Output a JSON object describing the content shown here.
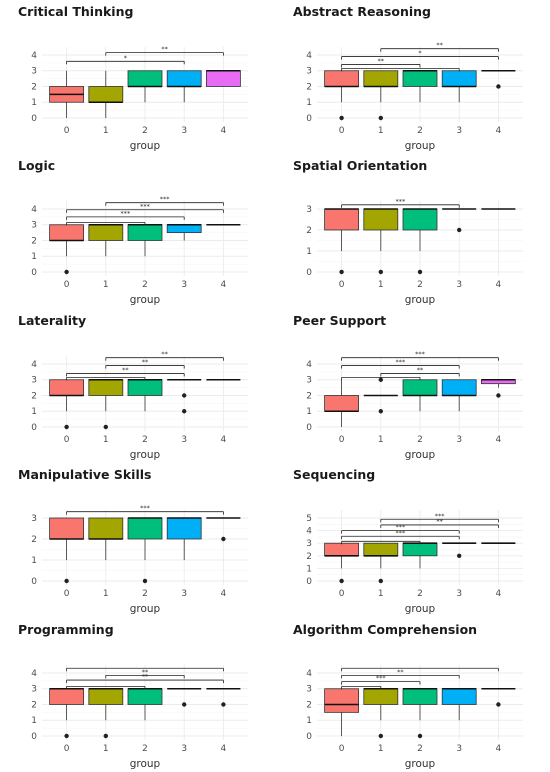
{
  "chart_data": [
    {
      "type": "box",
      "title": "Critical Thinking",
      "xlabel": "group",
      "categories": [
        "0",
        "1",
        "2",
        "3",
        "4"
      ],
      "ylim": [
        0,
        4.5
      ],
      "yticks": [
        0,
        1,
        2,
        3,
        4
      ],
      "boxes": [
        {
          "q1": 1,
          "median": 1.5,
          "q3": 2,
          "lower": 0,
          "upper": 3,
          "outliers": []
        },
        {
          "q1": 1,
          "median": 1,
          "q3": 2,
          "lower": 0,
          "upper": 3,
          "outliers": []
        },
        {
          "q1": 2,
          "median": 2,
          "q3": 3,
          "lower": 1,
          "upper": 3,
          "outliers": []
        },
        {
          "q1": 2,
          "median": 2,
          "q3": 3,
          "lower": 1,
          "upper": 3,
          "outliers": []
        },
        {
          "q1": 2,
          "median": 3,
          "q3": 3,
          "lower": 2,
          "upper": 3,
          "outliers": []
        }
      ],
      "significance": [
        {
          "from": "1",
          "to": "4",
          "label": "**",
          "y": 4.15
        },
        {
          "from": "0",
          "to": "3",
          "label": "*",
          "y": 3.6
        }
      ]
    },
    {
      "type": "box",
      "title": "Abstract Reasoning",
      "xlabel": "group",
      "categories": [
        "0",
        "1",
        "2",
        "3",
        "4"
      ],
      "ylim": [
        0,
        4.5
      ],
      "yticks": [
        0,
        1,
        2,
        3,
        4
      ],
      "boxes": [
        {
          "q1": 2,
          "median": 2,
          "q3": 3,
          "lower": 1,
          "upper": 3,
          "outliers": [
            0
          ]
        },
        {
          "q1": 2,
          "median": 2,
          "q3": 3,
          "lower": 1,
          "upper": 3,
          "outliers": [
            0
          ]
        },
        {
          "q1": 2,
          "median": 3,
          "q3": 3,
          "lower": 1,
          "upper": 3,
          "outliers": []
        },
        {
          "q1": 2,
          "median": 2,
          "q3": 3,
          "lower": 1,
          "upper": 3,
          "outliers": []
        },
        {
          "q1": 3,
          "median": 3,
          "q3": 3,
          "lower": 3,
          "upper": 3,
          "outliers": [
            2
          ]
        }
      ],
      "significance": [
        {
          "from": "1",
          "to": "4",
          "label": "**",
          "y": 4.4
        },
        {
          "from": "0",
          "to": "4",
          "label": "*",
          "y": 3.9
        },
        {
          "from": "0",
          "to": "2",
          "label": "**",
          "y": 3.4
        },
        {
          "from": "0",
          "to": "3",
          "label": "",
          "y": 3.15
        }
      ]
    },
    {
      "type": "box",
      "title": "Logic",
      "xlabel": "group",
      "categories": [
        "0",
        "1",
        "2",
        "3",
        "4"
      ],
      "ylim": [
        0,
        4.5
      ],
      "yticks": [
        0,
        1,
        2,
        3,
        4
      ],
      "boxes": [
        {
          "q1": 2,
          "median": 2,
          "q3": 3,
          "lower": 1,
          "upper": 3,
          "outliers": [
            0
          ]
        },
        {
          "q1": 2,
          "median": 3,
          "q3": 3,
          "lower": 1,
          "upper": 3,
          "outliers": []
        },
        {
          "q1": 2,
          "median": 3,
          "q3": 3,
          "lower": 1,
          "upper": 3,
          "outliers": []
        },
        {
          "q1": 2.5,
          "median": 3,
          "q3": 3,
          "lower": 2,
          "upper": 3,
          "outliers": []
        },
        {
          "q1": 3,
          "median": 3,
          "q3": 3,
          "lower": 3,
          "upper": 3,
          "outliers": []
        }
      ],
      "significance": [
        {
          "from": "1",
          "to": "4",
          "label": "***",
          "y": 4.4
        },
        {
          "from": "0",
          "to": "4",
          "label": "***",
          "y": 3.95
        },
        {
          "from": "0",
          "to": "3",
          "label": "***",
          "y": 3.5
        },
        {
          "from": "0",
          "to": "2",
          "label": "",
          "y": 3.15
        }
      ]
    },
    {
      "type": "box",
      "title": "Spatial Orientation",
      "xlabel": "group",
      "categories": [
        "0",
        "1",
        "2",
        "3",
        "4"
      ],
      "ylim": [
        0,
        3.5
      ],
      "yticks": [
        0,
        1,
        2,
        3
      ],
      "boxes": [
        {
          "q1": 2,
          "median": 3,
          "q3": 3,
          "lower": 1,
          "upper": 3,
          "outliers": [
            0
          ]
        },
        {
          "q1": 2,
          "median": 3,
          "q3": 3,
          "lower": 1,
          "upper": 3,
          "outliers": [
            0
          ]
        },
        {
          "q1": 2,
          "median": 3,
          "q3": 3,
          "lower": 1,
          "upper": 3,
          "outliers": [
            0
          ]
        },
        {
          "q1": 3,
          "median": 3,
          "q3": 3,
          "lower": 3,
          "upper": 3,
          "outliers": [
            2
          ]
        },
        {
          "q1": 3,
          "median": 3,
          "q3": 3,
          "lower": 3,
          "upper": 3,
          "outliers": []
        }
      ],
      "significance": [
        {
          "from": "0",
          "to": "3",
          "label": "***",
          "y": 3.2
        }
      ]
    },
    {
      "type": "box",
      "title": "Laterality",
      "xlabel": "group",
      "categories": [
        "0",
        "1",
        "2",
        "3",
        "4"
      ],
      "ylim": [
        0,
        4.5
      ],
      "yticks": [
        0,
        1,
        2,
        3,
        4
      ],
      "boxes": [
        {
          "q1": 2,
          "median": 2,
          "q3": 3,
          "lower": 1,
          "upper": 3,
          "outliers": [
            0
          ]
        },
        {
          "q1": 2,
          "median": 3,
          "q3": 3,
          "lower": 1,
          "upper": 3,
          "outliers": [
            0
          ]
        },
        {
          "q1": 2,
          "median": 3,
          "q3": 3,
          "lower": 1,
          "upper": 3,
          "outliers": []
        },
        {
          "q1": 3,
          "median": 3,
          "q3": 3,
          "lower": 3,
          "upper": 3,
          "outliers": [
            1,
            2
          ]
        },
        {
          "q1": 3,
          "median": 3,
          "q3": 3,
          "lower": 3,
          "upper": 3,
          "outliers": []
        }
      ],
      "significance": [
        {
          "from": "1",
          "to": "4",
          "label": "**",
          "y": 4.4
        },
        {
          "from": "1",
          "to": "3",
          "label": "**",
          "y": 3.9
        },
        {
          "from": "0",
          "to": "3",
          "label": "**",
          "y": 3.4
        },
        {
          "from": "0",
          "to": "2",
          "label": "",
          "y": 3.15
        }
      ]
    },
    {
      "type": "box",
      "title": "Peer Support",
      "xlabel": "group",
      "categories": [
        "0",
        "1",
        "2",
        "3",
        "4"
      ],
      "ylim": [
        0,
        4.5
      ],
      "yticks": [
        0,
        1,
        2,
        3,
        4
      ],
      "boxes": [
        {
          "q1": 1,
          "median": 1,
          "q3": 2,
          "lower": 0,
          "upper": 3,
          "outliers": []
        },
        {
          "q1": 2,
          "median": 2,
          "q3": 2,
          "lower": 2,
          "upper": 2,
          "outliers": [
            1,
            3
          ]
        },
        {
          "q1": 2,
          "median": 2,
          "q3": 3,
          "lower": 1,
          "upper": 3,
          "outliers": []
        },
        {
          "q1": 2,
          "median": 2,
          "q3": 3,
          "lower": 1,
          "upper": 3,
          "outliers": []
        },
        {
          "q1": 2.75,
          "median": 3,
          "q3": 3,
          "lower": 2.5,
          "upper": 3,
          "outliers": [
            2
          ]
        }
      ],
      "significance": [
        {
          "from": "0",
          "to": "4",
          "label": "***",
          "y": 4.4
        },
        {
          "from": "0",
          "to": "3",
          "label": "***",
          "y": 3.9
        },
        {
          "from": "1",
          "to": "3",
          "label": "**",
          "y": 3.4
        },
        {
          "from": "0",
          "to": "2",
          "label": "",
          "y": 3.15
        }
      ]
    },
    {
      "type": "box",
      "title": "Manipulative Skills",
      "xlabel": "group",
      "categories": [
        "0",
        "1",
        "2",
        "3",
        "4"
      ],
      "ylim": [
        0,
        3.5
      ],
      "yticks": [
        0,
        1,
        2,
        3
      ],
      "boxes": [
        {
          "q1": 2,
          "median": 2,
          "q3": 3,
          "lower": 1,
          "upper": 3,
          "outliers": [
            0
          ]
        },
        {
          "q1": 2,
          "median": 2,
          "q3": 3,
          "lower": 1,
          "upper": 3,
          "outliers": []
        },
        {
          "q1": 2,
          "median": 3,
          "q3": 3,
          "lower": 1,
          "upper": 3,
          "outliers": [
            0
          ]
        },
        {
          "q1": 2,
          "median": 3,
          "q3": 3,
          "lower": 1,
          "upper": 3,
          "outliers": []
        },
        {
          "q1": 3,
          "median": 3,
          "q3": 3,
          "lower": 3,
          "upper": 3,
          "outliers": [
            2
          ]
        }
      ],
      "significance": [
        {
          "from": "0",
          "to": "4",
          "label": "***",
          "y": 3.3
        }
      ]
    },
    {
      "type": "box",
      "title": "Sequencing",
      "xlabel": "group",
      "categories": [
        "0",
        "1",
        "2",
        "3",
        "4"
      ],
      "ylim": [
        0,
        5.2
      ],
      "yticks": [
        0,
        1,
        2,
        3,
        4,
        5
      ],
      "boxes": [
        {
          "q1": 2,
          "median": 2,
          "q3": 3,
          "lower": 1,
          "upper": 3,
          "outliers": [
            0
          ]
        },
        {
          "q1": 2,
          "median": 2,
          "q3": 3,
          "lower": 1,
          "upper": 3,
          "outliers": [
            0
          ]
        },
        {
          "q1": 2,
          "median": 3,
          "q3": 3,
          "lower": 1,
          "upper": 3,
          "outliers": []
        },
        {
          "q1": 3,
          "median": 3,
          "q3": 3,
          "lower": 3,
          "upper": 3,
          "outliers": [
            2
          ]
        },
        {
          "q1": 3,
          "median": 3,
          "q3": 3,
          "lower": 3,
          "upper": 3,
          "outliers": []
        }
      ],
      "significance": [
        {
          "from": "1",
          "to": "4",
          "label": "***",
          "y": 4.9
        },
        {
          "from": "1",
          "to": "4",
          "label": "**",
          "y": 4.45
        },
        {
          "from": "0",
          "to": "3",
          "label": "***",
          "y": 4.0
        },
        {
          "from": "0",
          "to": "3",
          "label": "***",
          "y": 3.55
        },
        {
          "from": "0",
          "to": "2",
          "label": "",
          "y": 3.15
        }
      ]
    },
    {
      "type": "box",
      "title": "Programming",
      "xlabel": "group",
      "categories": [
        "0",
        "1",
        "2",
        "3",
        "4"
      ],
      "ylim": [
        0,
        4.5
      ],
      "yticks": [
        0,
        1,
        2,
        3,
        4
      ],
      "boxes": [
        {
          "q1": 2,
          "median": 3,
          "q3": 3,
          "lower": 1,
          "upper": 3,
          "outliers": [
            0
          ]
        },
        {
          "q1": 2,
          "median": 3,
          "q3": 3,
          "lower": 1,
          "upper": 3,
          "outliers": [
            0
          ]
        },
        {
          "q1": 2,
          "median": 3,
          "q3": 3,
          "lower": 1,
          "upper": 3,
          "outliers": []
        },
        {
          "q1": 3,
          "median": 3,
          "q3": 3,
          "lower": 3,
          "upper": 3,
          "outliers": [
            2
          ]
        },
        {
          "q1": 3,
          "median": 3,
          "q3": 3,
          "lower": 3,
          "upper": 3,
          "outliers": [
            2
          ]
        }
      ],
      "significance": [
        {
          "from": "0",
          "to": "4",
          "label": "",
          "y": 4.3
        },
        {
          "from": "1",
          "to": "3",
          "label": "**",
          "y": 3.85
        },
        {
          "from": "0",
          "to": "4",
          "label": "**",
          "y": 3.55
        },
        {
          "from": "0",
          "to": "2",
          "label": "",
          "y": 3.15
        }
      ]
    },
    {
      "type": "box",
      "title": "Algorithm Comprehension",
      "xlabel": "group",
      "categories": [
        "0",
        "1",
        "2",
        "3",
        "4"
      ],
      "ylim": [
        0,
        4.5
      ],
      "yticks": [
        0,
        1,
        2,
        3,
        4
      ],
      "boxes": [
        {
          "q1": 1.5,
          "median": 2,
          "q3": 3,
          "lower": 0,
          "upper": 3,
          "outliers": []
        },
        {
          "q1": 2,
          "median": 3,
          "q3": 3,
          "lower": 1,
          "upper": 3,
          "outliers": [
            0
          ]
        },
        {
          "q1": 2,
          "median": 3,
          "q3": 3,
          "lower": 1,
          "upper": 3,
          "outliers": [
            0
          ]
        },
        {
          "q1": 2,
          "median": 3,
          "q3": 3,
          "lower": 1,
          "upper": 3,
          "outliers": []
        },
        {
          "q1": 3,
          "median": 3,
          "q3": 3,
          "lower": 3,
          "upper": 3,
          "outliers": [
            2
          ]
        }
      ],
      "significance": [
        {
          "from": "0",
          "to": "4",
          "label": "",
          "y": 4.3
        },
        {
          "from": "0",
          "to": "3",
          "label": "**",
          "y": 3.85
        },
        {
          "from": "0",
          "to": "2",
          "label": "***",
          "y": 3.45
        },
        {
          "from": "0",
          "to": "1",
          "label": "",
          "y": 3.15
        }
      ]
    }
  ],
  "colors": {
    "group_fill": [
      "#f8766d",
      "#a3a500",
      "#00bf7d",
      "#00b0f6",
      "#e76bf3"
    ],
    "grid": "#ebebeb",
    "line": "#333333",
    "bracket": "#222222",
    "point": "#222222"
  }
}
